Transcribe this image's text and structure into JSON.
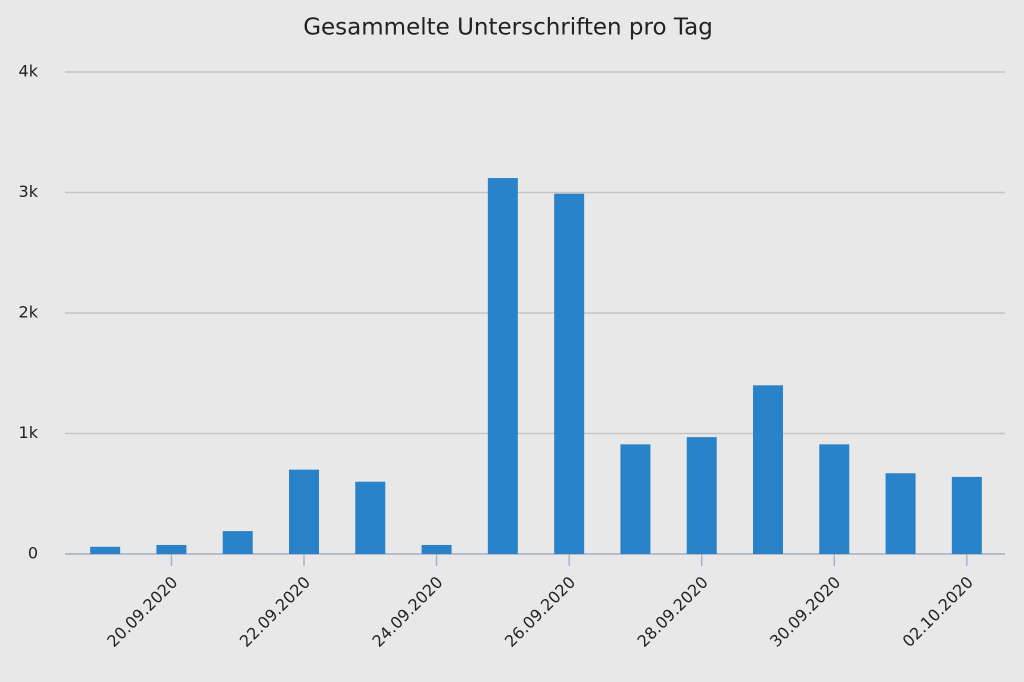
{
  "chart_data": {
    "type": "bar",
    "title": "Gesammelte Unterschriften pro Tag",
    "categories": [
      null,
      "20.09.2020",
      null,
      "22.09.2020",
      null,
      "24.09.2020",
      null,
      "26.09.2020",
      null,
      "28.09.2020",
      null,
      "30.09.2020",
      null,
      "02.10.2020"
    ],
    "values": [
      60,
      75,
      190,
      700,
      600,
      75,
      3120,
      2990,
      910,
      970,
      1400,
      910,
      670,
      640
    ],
    "color": "#2a83c8",
    "ylim": [
      0,
      4000
    ],
    "yticks": [
      0,
      {
        "value": 1000,
        "label": "1k"
      },
      {
        "value": 2000,
        "label": "2k"
      },
      {
        "value": 3000,
        "label": "3k"
      },
      {
        "value": 4000,
        "label": "4k"
      }
    ],
    "grid": true
  }
}
